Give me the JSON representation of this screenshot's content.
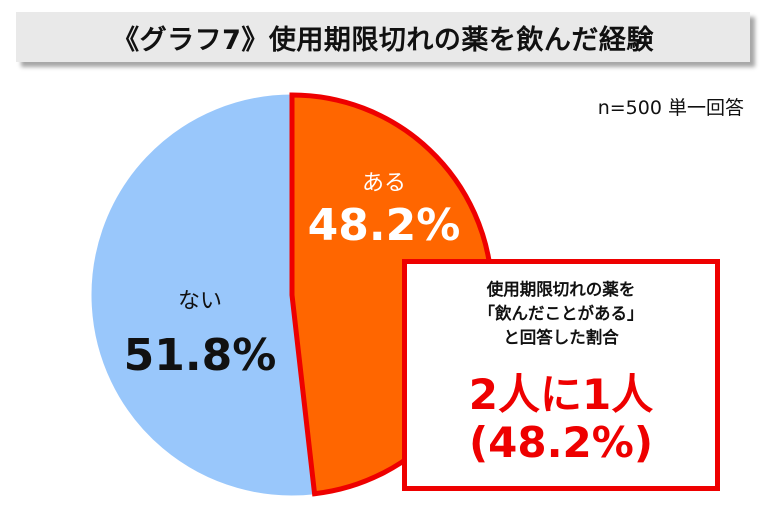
{
  "title": "《グラフ7》使用期限切れの薬を飲んだ経験",
  "sample_note": "n=500 単一回答",
  "chart_data": {
    "type": "pie",
    "slices": [
      {
        "label": "ある",
        "value": 48.2,
        "value_label": "48.2%",
        "color": "#ff6600",
        "stroke": "#ee0000"
      },
      {
        "label": "ない",
        "value": 51.8,
        "value_label": "51.8%",
        "color": "#99c7fb",
        "stroke": "#99c7fb"
      }
    ]
  },
  "callout": {
    "line1": "使用期限切れの薬を",
    "line2": "「飲んだことがある」",
    "line3": "と回答した割合",
    "headline": "2人に1人",
    "headline_sub": "(48.2%)"
  }
}
